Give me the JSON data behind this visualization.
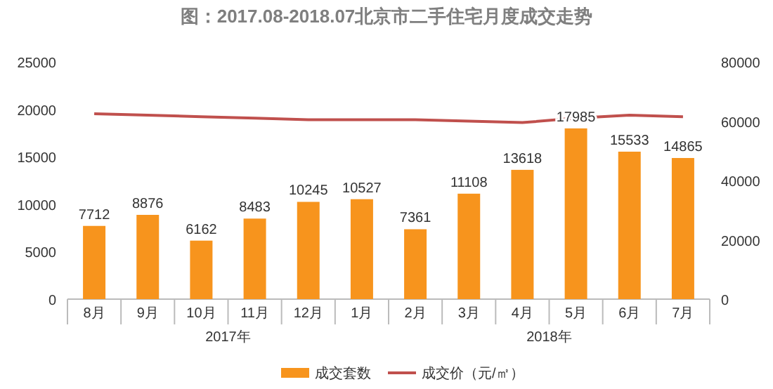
{
  "chart_data": {
    "type": "bar",
    "title": "图：2017.08-2018.07北京市二手住宅月度成交走势",
    "categories": [
      "8月",
      "9月",
      "10月",
      "11月",
      "12月",
      "1月",
      "2月",
      "3月",
      "4月",
      "5月",
      "6月",
      "7月"
    ],
    "series": [
      {
        "name": "成交套数",
        "color": "#f7941d",
        "values": [
          7712,
          8876,
          6162,
          8483,
          10245,
          10527,
          7361,
          11108,
          13618,
          17985,
          15533,
          14865
        ],
        "value_labels": [
          "7712",
          "8876",
          "6162",
          "8483",
          "10245",
          "10527",
          "7361",
          "11108",
          "13618",
          "17985",
          "15533",
          "14865"
        ]
      },
      {
        "name": "成交价（元/㎡）",
        "type": "line",
        "axis": "y2",
        "color": "#c0504d",
        "values": [
          62500,
          62000,
          61500,
          61000,
          60500,
          60500,
          60500,
          60000,
          59500,
          61000,
          62000,
          61500
        ]
      }
    ],
    "ylim": [
      0,
      25000
    ],
    "yticks": [
      0,
      5000,
      10000,
      15000,
      20000,
      25000
    ],
    "y2lim": [
      0,
      80000
    ],
    "y2ticks": [
      0,
      20000,
      40000,
      60000,
      80000
    ],
    "legend": "bottom",
    "grid": false,
    "marker": "none",
    "annotations": [
      "2017年",
      "2018年"
    ]
  }
}
